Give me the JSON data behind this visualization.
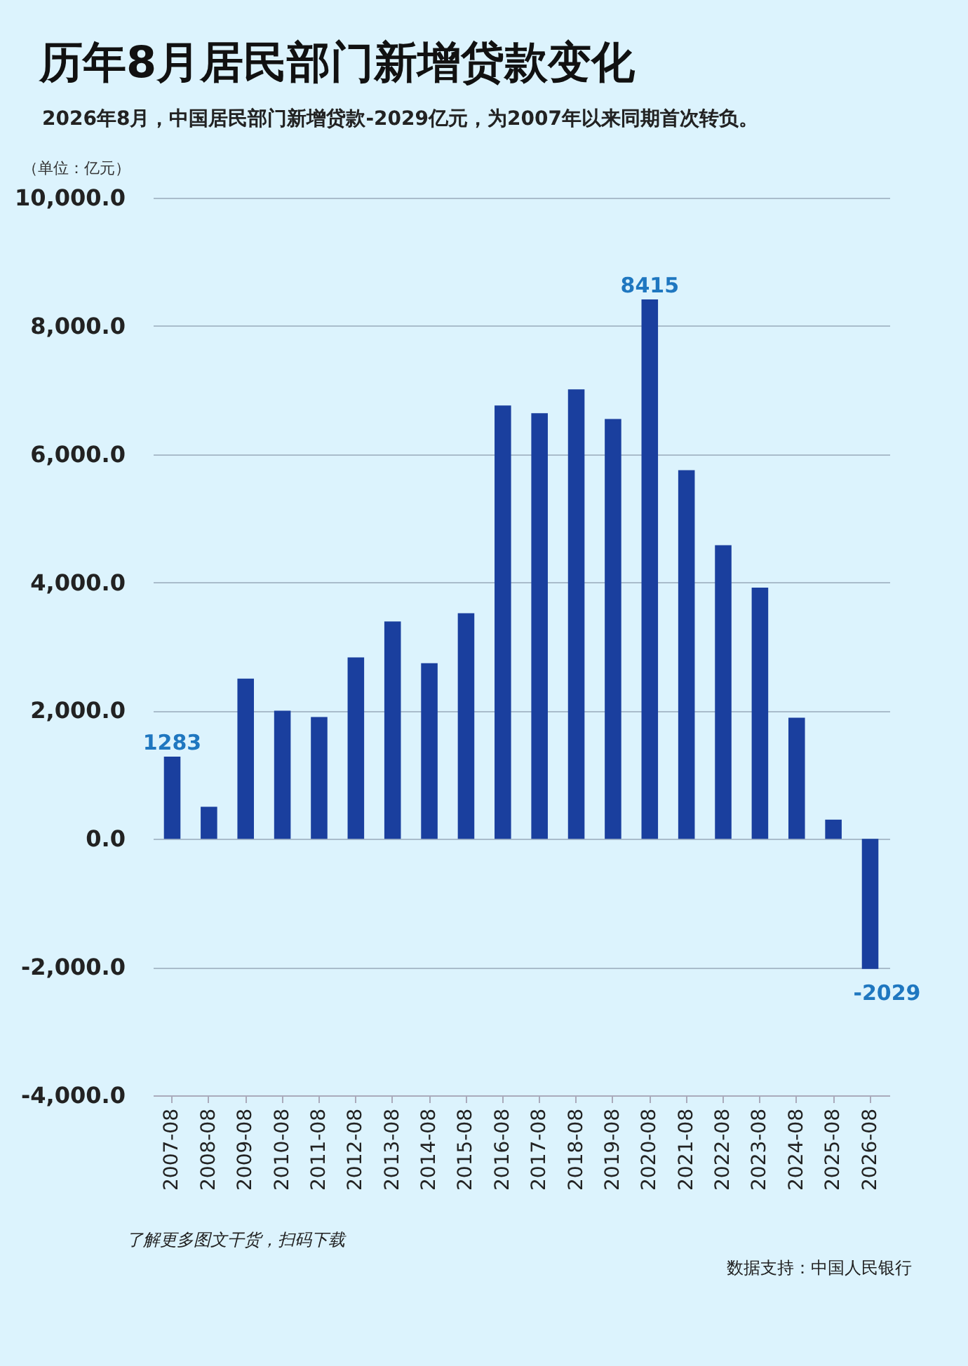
{
  "chart_data": {
    "type": "bar",
    "title": "历年8月居民部门新增贷款变化",
    "subtitle": "2026年8月，中国居民部门新增贷款-2029亿元，为2007年以来同期首次转负。",
    "ylabel": "（单位：亿元）",
    "categories": [
      "2007-08",
      "2008-08",
      "2009-08",
      "2010-08",
      "2011-08",
      "2012-08",
      "2013-08",
      "2014-08",
      "2015-08",
      "2016-08",
      "2017-08",
      "2018-08",
      "2019-08",
      "2020-08",
      "2021-08",
      "2022-08",
      "2023-08",
      "2024-08",
      "2025-08",
      "2026-08"
    ],
    "series": [
      {
        "color": "#1a3f9e",
        "values": [
          1283,
          500,
          2500,
          2000,
          1900,
          2830,
          3390,
          2740,
          3520,
          6760,
          6640,
          7010,
          6550,
          8415,
          5750,
          4580,
          3920,
          1890,
          300,
          -2029
        ],
        "value_labels": [
          "1283",
          null,
          null,
          null,
          null,
          null,
          null,
          null,
          null,
          null,
          null,
          null,
          null,
          "8415",
          null,
          null,
          null,
          null,
          null,
          "-2029"
        ]
      }
    ],
    "ylim": [
      -4000,
      10000
    ],
    "yticks": [
      {
        "value": -4000,
        "label": "-4,000.0"
      },
      {
        "value": -2000,
        "label": "-2,000.0"
      },
      {
        "value": 0,
        "label": "0.0"
      },
      {
        "value": 2000,
        "label": "2,000.0"
      },
      {
        "value": 4000,
        "label": "4,000.0"
      },
      {
        "value": 6000,
        "label": "6,000.0"
      },
      {
        "value": 8000,
        "label": "8,000.0"
      },
      {
        "value": 10000,
        "label": "10,000.0"
      }
    ],
    "grid": "y",
    "annotations": [
      "了解更多图文干货，扫码下载",
      "数据支持：中国人民银行"
    ]
  }
}
